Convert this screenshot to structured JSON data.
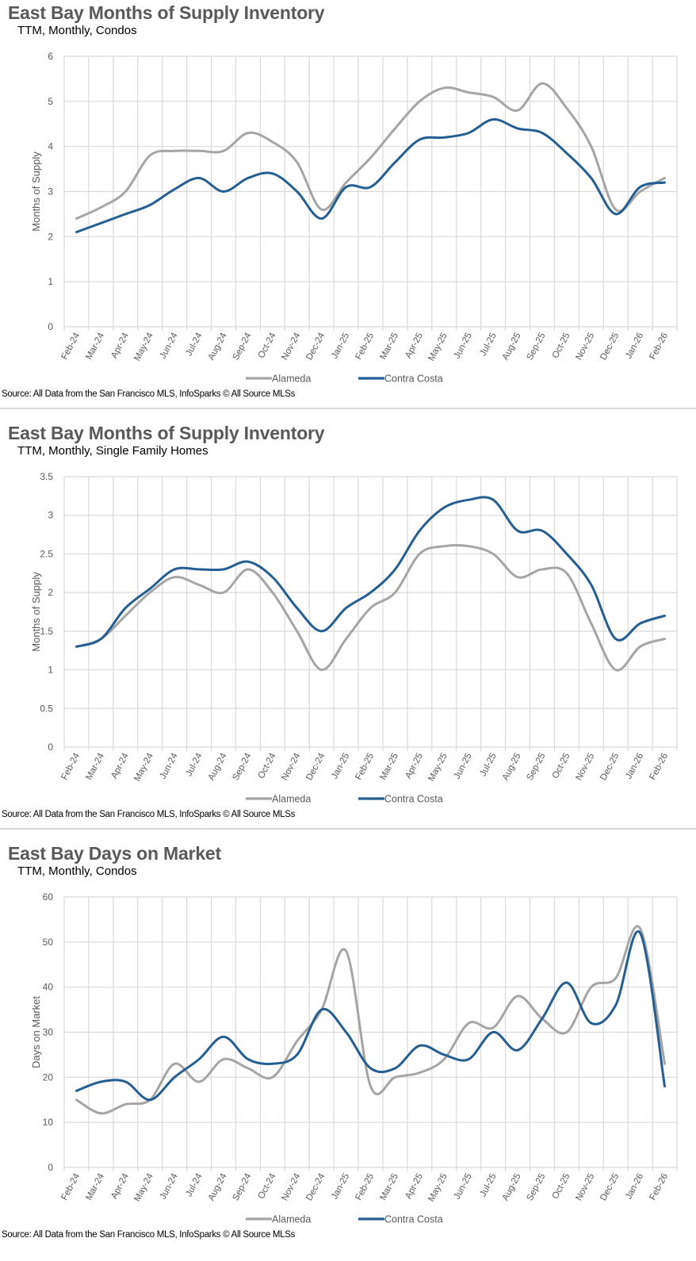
{
  "source_note": "Source: All Data from the San Francisco MLS, InfoSparks © All Source MLSs",
  "colors": {
    "alameda": "#A5A5A5",
    "contra_costa": "#255E91",
    "grid": "#D9D9D9"
  },
  "chart_data": [
    {
      "type": "line",
      "title": "East Bay Months of Supply Inventory",
      "subtitle": "TTM, Monthly, Condos",
      "xlabel": "",
      "ylabel": "Months of Supply",
      "ylim": [
        0,
        6
      ],
      "yticks": [
        0,
        1,
        2,
        3,
        4,
        5,
        6
      ],
      "grid": true,
      "legend": "bottom",
      "x": [
        "Feb-24",
        "Mar-24",
        "Apr-24",
        "May-24",
        "Jun-24",
        "Jul-24",
        "Aug-24",
        "Sep-24",
        "Oct-24",
        "Nov-24",
        "Dec-24",
        "Jan-25",
        "Feb-25",
        "Mar-25",
        "Apr-25",
        "May-25",
        "Jun-25",
        "Jul-25",
        "Aug-25",
        "Sep-25",
        "Oct-25",
        "Nov-25",
        "Dec-25",
        "Jan-26",
        "Feb-26"
      ],
      "series": [
        {
          "name": "Alameda",
          "values": [
            2.4,
            2.65,
            3.0,
            3.8,
            3.9,
            3.9,
            3.9,
            4.3,
            4.1,
            3.65,
            2.6,
            3.2,
            3.75,
            4.4,
            5.0,
            5.3,
            5.2,
            5.1,
            4.8,
            5.4,
            4.85,
            4.0,
            2.6,
            3.0,
            3.3
          ]
        },
        {
          "name": "Contra Costa",
          "values": [
            2.1,
            2.3,
            2.5,
            2.7,
            3.05,
            3.3,
            3.0,
            3.3,
            3.4,
            3.0,
            2.4,
            3.1,
            3.1,
            3.65,
            4.15,
            4.2,
            4.3,
            4.6,
            4.4,
            4.3,
            3.85,
            3.3,
            2.5,
            3.1,
            3.2
          ]
        }
      ]
    },
    {
      "type": "line",
      "title": "East Bay Months of Supply Inventory",
      "subtitle": "TTM, Monthly, Single Family Homes",
      "xlabel": "",
      "ylabel": "Months of Supply",
      "ylim": [
        0,
        3.5
      ],
      "yticks": [
        0,
        0.5,
        1,
        1.5,
        2,
        2.5,
        3,
        3.5
      ],
      "grid": true,
      "legend": "bottom",
      "x": [
        "Feb-24",
        "Mar-24",
        "Apr-24",
        "May-24",
        "Jun-24",
        "Jul-24",
        "Aug-24",
        "Sep-24",
        "Oct-24",
        "Nov-24",
        "Dec-24",
        "Jan-25",
        "Feb-25",
        "Mar-25",
        "Apr-25",
        "May-25",
        "Jun-25",
        "Jul-25",
        "Aug-25",
        "Sep-25",
        "Oct-25",
        "Nov-25",
        "Dec-25",
        "Jan-26",
        "Feb-26"
      ],
      "series": [
        {
          "name": "Alameda",
          "values": [
            1.3,
            1.4,
            1.7,
            2.0,
            2.2,
            2.1,
            2.0,
            2.3,
            2.0,
            1.5,
            1.0,
            1.4,
            1.8,
            2.0,
            2.5,
            2.6,
            2.6,
            2.5,
            2.2,
            2.3,
            2.25,
            1.6,
            1.0,
            1.3,
            1.4
          ]
        },
        {
          "name": "Contra Costa",
          "values": [
            1.3,
            1.4,
            1.8,
            2.05,
            2.3,
            2.3,
            2.3,
            2.4,
            2.2,
            1.8,
            1.5,
            1.8,
            2.0,
            2.3,
            2.8,
            3.1,
            3.2,
            3.2,
            2.8,
            2.8,
            2.5,
            2.1,
            1.4,
            1.6,
            1.7
          ]
        }
      ]
    },
    {
      "type": "line",
      "title": "East Bay Days on Market",
      "subtitle": "TTM, Monthly, Condos",
      "xlabel": "",
      "ylabel": "Days on Market",
      "ylim": [
        0,
        60
      ],
      "yticks": [
        0,
        10,
        20,
        30,
        40,
        50,
        60
      ],
      "grid": true,
      "legend": "bottom",
      "x": [
        "Feb-24",
        "Mar-24",
        "Apr-24",
        "May-24",
        "Jun-24",
        "Jul-24",
        "Aug-24",
        "Sep-24",
        "Oct-24",
        "Nov-24",
        "Dec-24",
        "Jan-25",
        "Feb-25",
        "Mar-25",
        "Apr-25",
        "May-25",
        "Jun-25",
        "Jul-25",
        "Aug-25",
        "Sep-25",
        "Oct-25",
        "Nov-25",
        "Dec-25",
        "Jan-26",
        "Feb-26"
      ],
      "series": [
        {
          "name": "Alameda",
          "values": [
            15,
            12,
            14,
            15,
            23,
            19,
            24,
            22,
            20,
            28,
            35,
            48,
            18,
            20,
            21,
            24,
            32,
            31,
            38,
            33,
            30,
            40,
            42,
            53,
            23
          ]
        },
        {
          "name": "Contra Costa",
          "values": [
            17,
            19,
            19,
            15,
            20,
            24,
            29,
            24,
            23,
            25,
            35,
            30,
            22,
            22,
            27,
            25,
            24,
            30,
            26,
            33,
            41,
            32,
            36,
            52,
            18
          ]
        }
      ]
    }
  ]
}
